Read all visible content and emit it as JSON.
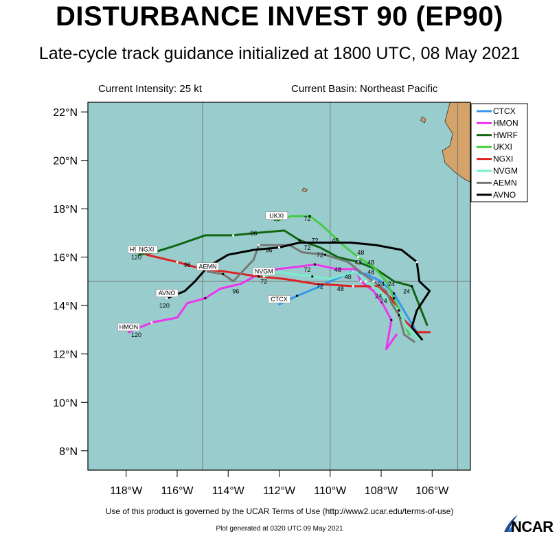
{
  "title": "DISTURBANCE INVEST 90 (EP90)",
  "subtitle": "Late-cycle track guidance initialized at 1800 UTC, 08 May 2021",
  "current_intensity": "Current Intensity: 25 kt",
  "current_basin": "Current Basin: Northeast Pacific",
  "footer_terms": "Use of this product is governed by the UCAR Terms of Use (http://www2.ucar.edu/terms-of-use)",
  "footer_generated": "Plot generated at 0320 UTC   09 May 2021",
  "logo_text": "NCAR",
  "colors": {
    "ocean": "#99cccc",
    "land": "#d4a36a",
    "frame": "#000000"
  },
  "chart_data": {
    "type": "map-track",
    "lon_range": [
      -119.5,
      -104.5
    ],
    "lat_range": [
      7.2,
      22.4
    ],
    "lat_ticks": [
      {
        "v": 22,
        "label": "22°N"
      },
      {
        "v": 20,
        "label": "20°N"
      },
      {
        "v": 18,
        "label": "18°N"
      },
      {
        "v": 16,
        "label": "16°N"
      },
      {
        "v": 14,
        "label": "14°N"
      },
      {
        "v": 12,
        "label": "12°N"
      },
      {
        "v": 10,
        "label": "10°N"
      },
      {
        "v": 8,
        "label": "8°N"
      }
    ],
    "lon_ticks": [
      {
        "v": -118,
        "label": "118°W"
      },
      {
        "v": -116,
        "label": "116°W"
      },
      {
        "v": -114,
        "label": "114°W"
      },
      {
        "v": -112,
        "label": "112°W"
      },
      {
        "v": -110,
        "label": "110°W"
      },
      {
        "v": -108,
        "label": "108°W"
      },
      {
        "v": -106,
        "label": "106°W"
      }
    ],
    "grid_lon": [
      -115,
      -110,
      -105
    ],
    "grid_lat": [
      15
    ],
    "land": [
      {
        "name": "mainland",
        "points": [
          [
            -104.5,
            22.4
          ],
          [
            -105.3,
            22.4
          ],
          [
            -105.5,
            21.6
          ],
          [
            -105.2,
            21.1
          ],
          [
            -105.3,
            20.6
          ],
          [
            -105.6,
            20.4
          ],
          [
            -105.5,
            19.9
          ],
          [
            -105.1,
            19.5
          ],
          [
            -104.7,
            19.2
          ],
          [
            -104.5,
            19.1
          ]
        ]
      },
      {
        "name": "islas-marias",
        "points": [
          [
            -106.4,
            21.8
          ],
          [
            -106.25,
            21.7
          ],
          [
            -106.3,
            21.55
          ],
          [
            -106.45,
            21.65
          ]
        ]
      },
      {
        "name": "socorro",
        "points": [
          [
            -111.05,
            18.85
          ],
          [
            -110.9,
            18.8
          ],
          [
            -110.95,
            18.7
          ],
          [
            -111.1,
            18.75
          ]
        ]
      }
    ],
    "tracks": [
      {
        "name": "CTCX",
        "color": "#3399ee",
        "end_label": "CTCX",
        "points": [
          [
            -106.6,
            12.9
          ],
          [
            -107.0,
            13.6
          ],
          [
            -107.5,
            14.5
          ],
          [
            -108.0,
            15.0
          ],
          [
            -108.6,
            15.3
          ],
          [
            -109.1,
            15.4
          ],
          [
            -110.0,
            15.0
          ],
          [
            -110.6,
            14.7
          ],
          [
            -111.3,
            14.4
          ],
          [
            -112.0,
            14.05
          ]
        ]
      },
      {
        "name": "HMON",
        "color": "#ee33ee",
        "end_label": "HMON",
        "hour_label": "120",
        "points": [
          [
            -107.4,
            12.8
          ],
          [
            -107.8,
            12.2
          ],
          [
            -107.6,
            13.4
          ],
          [
            -107.9,
            14.0
          ],
          [
            -108.3,
            14.6
          ],
          [
            -108.8,
            15.0
          ],
          [
            -109.0,
            15.5
          ],
          [
            -109.7,
            15.5
          ],
          [
            -110.6,
            15.7
          ],
          [
            -111.3,
            15.6
          ],
          [
            -112.1,
            15.5
          ],
          [
            -112.8,
            15.3
          ],
          [
            -113.5,
            14.9
          ],
          [
            -114.3,
            14.7
          ],
          [
            -114.9,
            14.3
          ],
          [
            -115.6,
            14.1
          ],
          [
            -116.0,
            13.5
          ],
          [
            -117.0,
            13.3
          ],
          [
            -117.9,
            12.9
          ]
        ]
      },
      {
        "name": "HWRF",
        "color": "#116611",
        "end_label": "HWRF",
        "hour_label": "120",
        "points": [
          [
            -106.2,
            13.2
          ],
          [
            -106.5,
            14.0
          ],
          [
            -106.8,
            14.8
          ],
          [
            -107.5,
            15.0
          ],
          [
            -108.2,
            15.5
          ],
          [
            -108.9,
            15.8
          ],
          [
            -109.7,
            16.0
          ],
          [
            -110.4,
            16.4
          ],
          [
            -111.2,
            16.7
          ],
          [
            -111.8,
            17.1
          ],
          [
            -112.9,
            17.0
          ],
          [
            -113.8,
            16.9
          ],
          [
            -114.9,
            16.9
          ],
          [
            -116.0,
            16.5
          ],
          [
            -116.9,
            16.2
          ],
          [
            -117.5,
            16.1
          ]
        ]
      },
      {
        "name": "UKXI",
        "color": "#44cc44",
        "end_label": "UKXI",
        "hour_label": "96",
        "points": [
          [
            -106.9,
            12.8
          ],
          [
            -107.2,
            13.6
          ],
          [
            -107.5,
            14.3
          ],
          [
            -107.8,
            15.0
          ],
          [
            -108.3,
            15.6
          ],
          [
            -108.9,
            16.0
          ],
          [
            -109.5,
            16.5
          ],
          [
            -110.3,
            17.3
          ],
          [
            -110.8,
            17.7
          ],
          [
            -111.5,
            17.7
          ],
          [
            -112.1,
            17.5
          ]
        ]
      },
      {
        "name": "NGXI",
        "color": "#dd2222",
        "end_label": "NGXI",
        "hour_label": "96",
        "points": [
          [
            -106.1,
            12.9
          ],
          [
            -106.6,
            12.9
          ],
          [
            -107.2,
            13.5
          ],
          [
            -107.6,
            14.3
          ],
          [
            -108.1,
            14.8
          ],
          [
            -109.1,
            14.8
          ],
          [
            -110.6,
            14.9
          ],
          [
            -111.8,
            15.1
          ],
          [
            -112.8,
            15.2
          ],
          [
            -114.1,
            15.4
          ],
          [
            -115.0,
            15.5
          ],
          [
            -116.0,
            15.8
          ],
          [
            -117.2,
            16.1
          ]
        ]
      },
      {
        "name": "NVGM",
        "color": "#77eecc",
        "end_label": "NVGM",
        "hour_label": "72",
        "points": [
          [
            -106.5,
            12.6
          ],
          [
            -107.0,
            13.1
          ],
          [
            -107.3,
            13.8
          ],
          [
            -107.8,
            14.3
          ],
          [
            -108.2,
            14.7
          ],
          [
            -108.6,
            15.0
          ],
          [
            -109.0,
            15.4
          ],
          [
            -110.0,
            15.1
          ],
          [
            -110.7,
            15.2
          ],
          [
            -111.5,
            15.3
          ],
          [
            -112.0,
            15.4
          ],
          [
            -112.6,
            15.2
          ]
        ]
      },
      {
        "name": "AEMN",
        "color": "#777777",
        "end_label": "AEMN",
        "hour_label": "96",
        "points": [
          [
            -106.7,
            12.5
          ],
          [
            -107.1,
            12.8
          ],
          [
            -107.3,
            13.6
          ],
          [
            -107.6,
            14.1
          ],
          [
            -107.8,
            14.6
          ],
          [
            -108.3,
            15.0
          ],
          [
            -108.7,
            15.3
          ],
          [
            -109.3,
            15.8
          ],
          [
            -110.2,
            16.1
          ],
          [
            -111.1,
            16.2
          ],
          [
            -111.6,
            16.5
          ],
          [
            -112.8,
            16.5
          ],
          [
            -113.0,
            15.9
          ],
          [
            -113.8,
            15.0
          ],
          [
            -114.2,
            15.3
          ],
          [
            -114.8,
            15.4
          ]
        ]
      },
      {
        "name": "AVNO",
        "color": "#000000",
        "end_label": "AVNO",
        "hour_label": "120",
        "points": [
          [
            -106.4,
            12.6
          ],
          [
            -106.8,
            13.1
          ],
          [
            -106.6,
            13.8
          ],
          [
            -106.1,
            14.6
          ],
          [
            -106.5,
            15.0
          ],
          [
            -106.6,
            15.8
          ],
          [
            -107.2,
            16.3
          ],
          [
            -108.2,
            16.5
          ],
          [
            -109.2,
            16.6
          ],
          [
            -110.2,
            16.6
          ],
          [
            -111.2,
            16.6
          ],
          [
            -112.0,
            16.4
          ],
          [
            -113.0,
            16.3
          ],
          [
            -114.0,
            16.1
          ],
          [
            -114.8,
            15.6
          ],
          [
            -115.3,
            15.0
          ],
          [
            -115.7,
            14.6
          ],
          [
            -116.4,
            14.3
          ]
        ]
      }
    ],
    "hour_labels": [
      {
        "text": "120",
        "lon": -117.6,
        "lat": 15.9
      },
      {
        "text": "120",
        "lon": -117.6,
        "lat": 12.7
      },
      {
        "text": "120",
        "lon": -116.5,
        "lat": 13.9
      },
      {
        "text": "96",
        "lon": -115.6,
        "lat": 15.6
      },
      {
        "text": "96",
        "lon": -113.0,
        "lat": 16.9
      },
      {
        "text": "96",
        "lon": -112.4,
        "lat": 16.2
      },
      {
        "text": "96",
        "lon": -113.7,
        "lat": 14.5
      },
      {
        "text": "96",
        "lon": -112.1,
        "lat": 17.5
      },
      {
        "text": "72",
        "lon": -110.9,
        "lat": 17.5
      },
      {
        "text": "72",
        "lon": -110.9,
        "lat": 16.3
      },
      {
        "text": "72",
        "lon": -110.6,
        "lat": 16.6
      },
      {
        "text": "72",
        "lon": -110.4,
        "lat": 16.0
      },
      {
        "text": "72",
        "lon": -112.3,
        "lat": 15.3
      },
      {
        "text": "72",
        "lon": -112.6,
        "lat": 14.9
      },
      {
        "text": "72",
        "lon": -110.9,
        "lat": 15.4
      },
      {
        "text": "72",
        "lon": -110.4,
        "lat": 14.7
      },
      {
        "text": "48",
        "lon": -109.8,
        "lat": 16.6
      },
      {
        "text": "48",
        "lon": -108.8,
        "lat": 16.1
      },
      {
        "text": "48",
        "lon": -108.4,
        "lat": 15.7
      },
      {
        "text": "48",
        "lon": -108.9,
        "lat": 15.7
      },
      {
        "text": "48",
        "lon": -109.7,
        "lat": 15.4
      },
      {
        "text": "48",
        "lon": -109.3,
        "lat": 15.1
      },
      {
        "text": "48",
        "lon": -108.4,
        "lat": 15.3
      },
      {
        "text": "48",
        "lon": -109.6,
        "lat": 14.6
      },
      {
        "text": "24",
        "lon": -107.6,
        "lat": 14.8
      },
      {
        "text": "24",
        "lon": -108.0,
        "lat": 14.8
      },
      {
        "text": "24",
        "lon": -107.0,
        "lat": 14.5
      },
      {
        "text": "24",
        "lon": -108.1,
        "lat": 14.3
      },
      {
        "text": "24",
        "lon": -107.9,
        "lat": 14.1
      }
    ],
    "legend_position": "top-right"
  }
}
